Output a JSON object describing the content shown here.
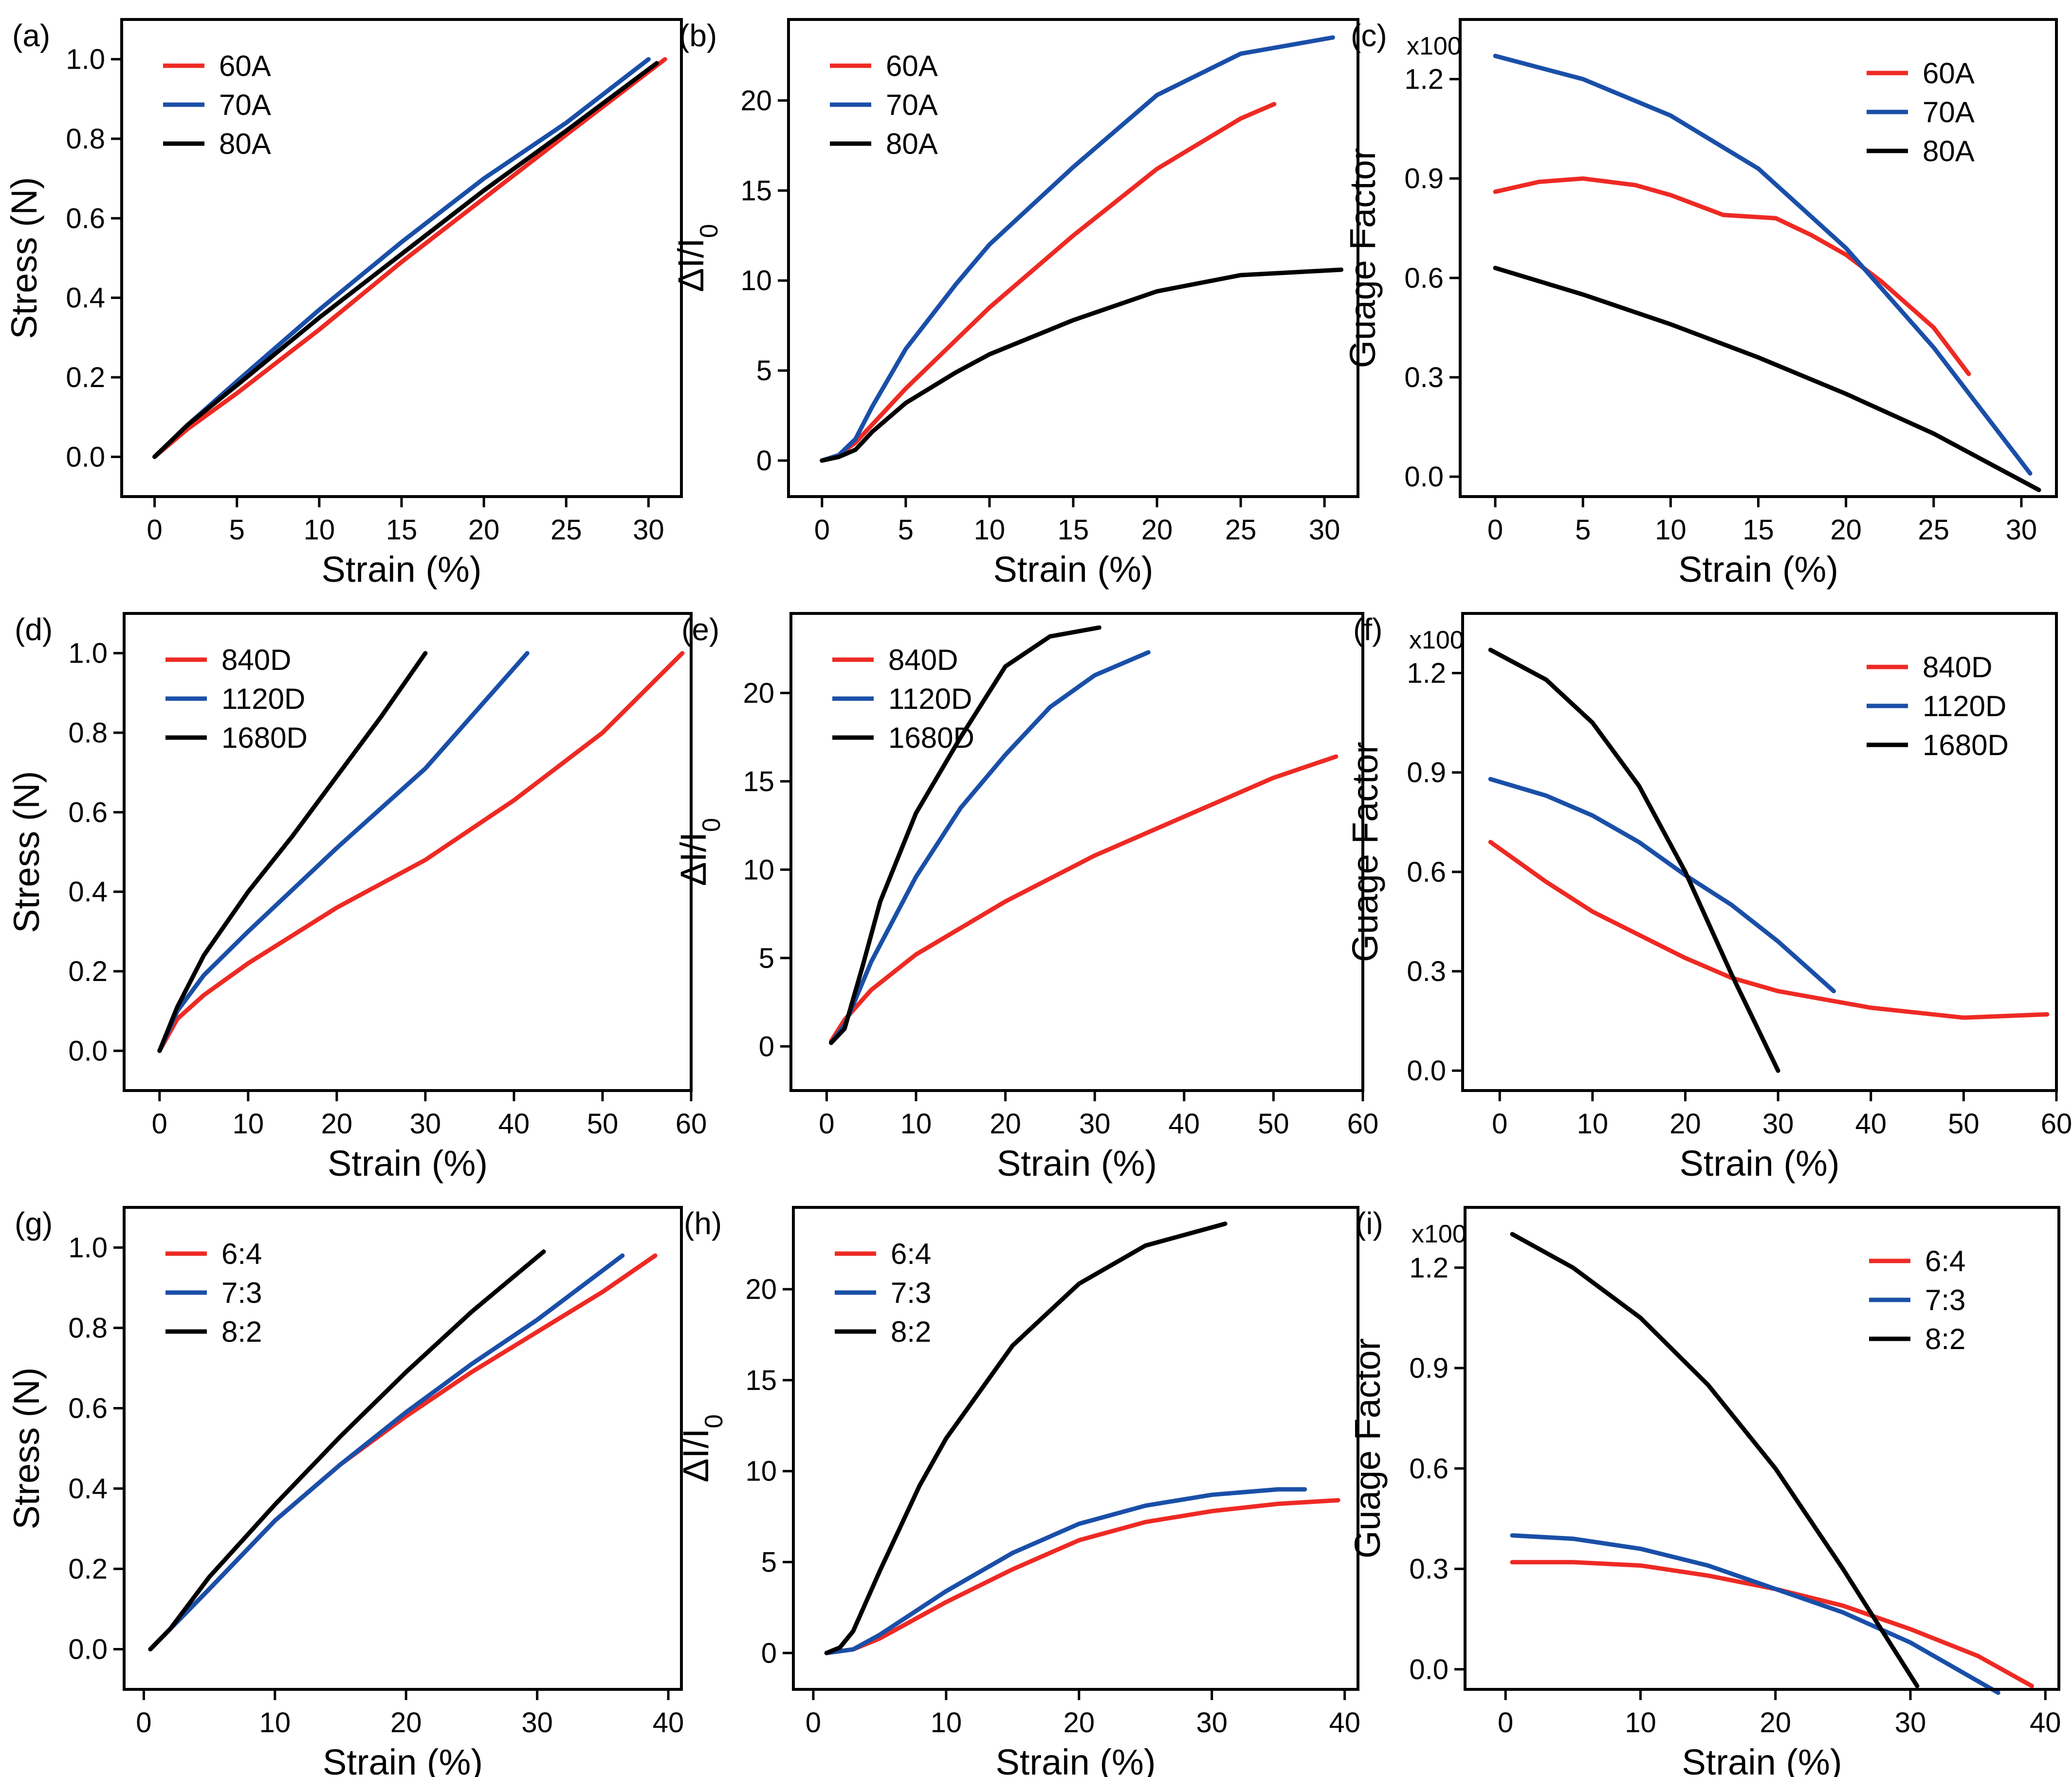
{
  "colors": {
    "red": "#ee2a24",
    "blue": "#1a4fa8",
    "black": "#000000"
  },
  "chart_data": [
    {
      "panel": "(a)",
      "type": "line",
      "xlabel": "Strain (%)",
      "ylabel": "Stress (N)",
      "yscale_label": "",
      "xlim": [
        -2,
        32
      ],
      "ylim": [
        -0.1,
        1.1
      ],
      "xticks": [
        0,
        5,
        10,
        15,
        20,
        25,
        30
      ],
      "xtick_labels": [
        "0",
        "5",
        "10",
        "15",
        "20",
        "25",
        "30"
      ],
      "yticks": [
        0,
        0.2,
        0.4,
        0.6,
        0.8,
        1.0
      ],
      "ytick_labels": [
        "0.0",
        "0.2",
        "0.4",
        "0.6",
        "0.8",
        "1.0"
      ],
      "legend_pos": "top-left",
      "series": [
        {
          "name": "60A",
          "color": "red",
          "x": [
            0,
            2,
            5,
            10,
            15,
            20,
            25,
            31
          ],
          "y": [
            0,
            0.07,
            0.16,
            0.32,
            0.49,
            0.65,
            0.81,
            1.0
          ]
        },
        {
          "name": "70A",
          "color": "blue",
          "x": [
            0,
            2,
            5,
            10,
            15,
            20,
            25,
            30
          ],
          "y": [
            0,
            0.08,
            0.19,
            0.37,
            0.54,
            0.7,
            0.84,
            1.0
          ]
        },
        {
          "name": "80A",
          "color": "black",
          "x": [
            0,
            2,
            5,
            10,
            15,
            20,
            25,
            30.5
          ],
          "y": [
            0,
            0.08,
            0.18,
            0.35,
            0.51,
            0.67,
            0.82,
            0.99
          ]
        }
      ]
    },
    {
      "panel": "(b)",
      "type": "line",
      "xlabel": "Strain (%)",
      "ylabel": "ΔI/I0",
      "yscale_label": "",
      "xlim": [
        -2,
        32
      ],
      "ylim": [
        -2,
        24.5
      ],
      "xticks": [
        0,
        5,
        10,
        15,
        20,
        25,
        30
      ],
      "xtick_labels": [
        "0",
        "5",
        "10",
        "15",
        "20",
        "25",
        "30"
      ],
      "yticks": [
        0,
        5,
        10,
        15,
        20
      ],
      "ytick_labels": [
        "0",
        "5",
        "10",
        "15",
        "20"
      ],
      "legend_pos": "top-left",
      "series": [
        {
          "name": "60A",
          "color": "red",
          "x": [
            0,
            1,
            2,
            3,
            5,
            8,
            10,
            15,
            20,
            25,
            27
          ],
          "y": [
            0,
            0.3,
            1.0,
            2.0,
            4.0,
            6.7,
            8.5,
            12.5,
            16.2,
            19.0,
            19.8
          ]
        },
        {
          "name": "70A",
          "color": "blue",
          "x": [
            0,
            1,
            2,
            3,
            5,
            8,
            10,
            15,
            20,
            25,
            30.5
          ],
          "y": [
            0,
            0.3,
            1.2,
            3.0,
            6.2,
            9.8,
            12.0,
            16.3,
            20.3,
            22.6,
            23.5
          ]
        },
        {
          "name": "80A",
          "color": "black",
          "x": [
            0,
            1,
            2,
            3,
            5,
            8,
            10,
            15,
            20,
            25,
            31
          ],
          "y": [
            0,
            0.2,
            0.6,
            1.6,
            3.2,
            4.9,
            5.9,
            7.8,
            9.4,
            10.3,
            10.6
          ]
        }
      ]
    },
    {
      "panel": "(c)",
      "type": "line",
      "xlabel": "Strain (%)",
      "ylabel": "Guage Factor",
      "yscale_label": "x100",
      "xlim": [
        -2,
        32
      ],
      "ylim": [
        -0.06,
        1.38
      ],
      "xticks": [
        0,
        5,
        10,
        15,
        20,
        25,
        30
      ],
      "xtick_labels": [
        "0",
        "5",
        "10",
        "15",
        "20",
        "25",
        "30"
      ],
      "yticks": [
        0,
        0.3,
        0.6,
        0.9,
        1.2
      ],
      "ytick_labels": [
        "0.0",
        "0.3",
        "0.6",
        "0.9",
        "1.2"
      ],
      "legend_pos": "top-right",
      "series": [
        {
          "name": "60A",
          "color": "red",
          "x": [
            0,
            2.5,
            5,
            8,
            10,
            13,
            16,
            18,
            20,
            22,
            25,
            27
          ],
          "y": [
            0.86,
            0.89,
            0.9,
            0.88,
            0.85,
            0.79,
            0.78,
            0.73,
            0.67,
            0.59,
            0.45,
            0.31
          ]
        },
        {
          "name": "70A",
          "color": "blue",
          "x": [
            0,
            5,
            10,
            15,
            20,
            25,
            30.5
          ],
          "y": [
            1.27,
            1.2,
            1.09,
            0.93,
            0.69,
            0.39,
            0.01
          ]
        },
        {
          "name": "80A",
          "color": "black",
          "x": [
            0,
            5,
            10,
            15,
            20,
            25,
            31
          ],
          "y": [
            0.63,
            0.55,
            0.46,
            0.36,
            0.25,
            0.13,
            -0.04
          ]
        }
      ]
    },
    {
      "panel": "(d)",
      "type": "line",
      "xlabel": "Strain (%)",
      "ylabel": "Stress (N)",
      "yscale_label": "",
      "xlim": [
        -4,
        60
      ],
      "ylim": [
        -0.1,
        1.1
      ],
      "xticks": [
        0,
        10,
        20,
        30,
        40,
        50,
        60
      ],
      "xtick_labels": [
        "0",
        "10",
        "20",
        "30",
        "40",
        "50",
        "60"
      ],
      "yticks": [
        0,
        0.2,
        0.4,
        0.6,
        0.8,
        1.0
      ],
      "ytick_labels": [
        "0.0",
        "0.2",
        "0.4",
        "0.6",
        "0.8",
        "1.0"
      ],
      "legend_pos": "top-left",
      "series": [
        {
          "name": "840D",
          "color": "red",
          "x": [
            0,
            2,
            5,
            10,
            20,
            30,
            40,
            50,
            59
          ],
          "y": [
            0,
            0.08,
            0.14,
            0.22,
            0.36,
            0.48,
            0.63,
            0.8,
            1.0
          ]
        },
        {
          "name": "1120D",
          "color": "blue",
          "x": [
            0,
            2,
            5,
            10,
            20,
            30,
            41.5
          ],
          "y": [
            0,
            0.1,
            0.19,
            0.3,
            0.51,
            0.71,
            1.0
          ]
        },
        {
          "name": "1680D",
          "color": "black",
          "x": [
            0,
            2,
            5,
            10,
            15,
            20,
            25,
            30
          ],
          "y": [
            0,
            0.11,
            0.24,
            0.4,
            0.54,
            0.69,
            0.84,
            1.0
          ]
        }
      ]
    },
    {
      "panel": "(e)",
      "type": "line",
      "xlabel": "Strain (%)",
      "ylabel": "ΔI/I0",
      "yscale_label": "",
      "xlim": [
        -4,
        60
      ],
      "ylim": [
        -2.5,
        24.5
      ],
      "xticks": [
        0,
        10,
        20,
        30,
        40,
        50,
        60
      ],
      "xtick_labels": [
        "0",
        "10",
        "20",
        "30",
        "40",
        "50",
        "60"
      ],
      "yticks": [
        0,
        5,
        10,
        15,
        20
      ],
      "ytick_labels": [
        "0",
        "5",
        "10",
        "15",
        "20"
      ],
      "legend_pos": "top-left",
      "series": [
        {
          "name": "840D",
          "color": "red",
          "x": [
            0.5,
            2,
            5,
            10,
            20,
            30,
            40,
            50,
            57
          ],
          "y": [
            0.3,
            1.5,
            3.2,
            5.2,
            8.2,
            10.8,
            13.0,
            15.2,
            16.4
          ]
        },
        {
          "name": "1120D",
          "color": "blue",
          "x": [
            0.5,
            2,
            5,
            10,
            15,
            20,
            25,
            30,
            36
          ],
          "y": [
            0.2,
            1.2,
            4.8,
            9.6,
            13.5,
            16.5,
            19.2,
            21.0,
            22.3
          ]
        },
        {
          "name": "1680D",
          "color": "black",
          "x": [
            0.5,
            2,
            4,
            6,
            10,
            15,
            20,
            25,
            30.5
          ],
          "y": [
            0.2,
            1.0,
            4.5,
            8.2,
            13.2,
            17.5,
            21.5,
            23.2,
            23.7
          ]
        }
      ]
    },
    {
      "panel": "(f)",
      "type": "line",
      "xlabel": "Strain (%)",
      "ylabel": "Guage Factor",
      "yscale_label": "x100",
      "xlim": [
        -4,
        60
      ],
      "ylim": [
        -0.06,
        1.38
      ],
      "xticks": [
        0,
        10,
        20,
        30,
        40,
        50,
        60
      ],
      "xtick_labels": [
        "0",
        "10",
        "20",
        "30",
        "40",
        "50",
        "60"
      ],
      "yticks": [
        0,
        0.3,
        0.6,
        0.9,
        1.2
      ],
      "ytick_labels": [
        "0.0",
        "0.3",
        "0.6",
        "0.9",
        "1.2"
      ],
      "legend_pos": "top-right",
      "series": [
        {
          "name": "840D",
          "color": "red",
          "x": [
            -1,
            5,
            10,
            20,
            25,
            30,
            40,
            50,
            59
          ],
          "y": [
            0.69,
            0.57,
            0.48,
            0.34,
            0.28,
            0.24,
            0.19,
            0.16,
            0.17
          ]
        },
        {
          "name": "1120D",
          "color": "blue",
          "x": [
            -1,
            5,
            10,
            15,
            20,
            25,
            30,
            36
          ],
          "y": [
            0.88,
            0.83,
            0.77,
            0.69,
            0.59,
            0.5,
            0.39,
            0.24
          ]
        },
        {
          "name": "1680D",
          "color": "black",
          "x": [
            -1,
            5,
            10,
            15,
            20,
            25,
            30
          ],
          "y": [
            1.27,
            1.18,
            1.05,
            0.86,
            0.6,
            0.29,
            0.0
          ]
        }
      ]
    },
    {
      "panel": "(g)",
      "type": "line",
      "xlabel": "Strain (%)",
      "ylabel": "Stress (N)",
      "yscale_label": "",
      "xlim": [
        -1.5,
        41
      ],
      "ylim": [
        -0.1,
        1.1
      ],
      "xticks": [
        0,
        10,
        20,
        30,
        40
      ],
      "xtick_labels": [
        "0",
        "10",
        "20",
        "30",
        "40"
      ],
      "yticks": [
        0,
        0.2,
        0.4,
        0.6,
        0.8,
        1.0
      ],
      "ytick_labels": [
        "0.0",
        "0.2",
        "0.4",
        "0.6",
        "0.8",
        "1.0"
      ],
      "legend_pos": "top-left",
      "series": [
        {
          "name": "6:4",
          "color": "red",
          "x": [
            0.5,
            2,
            5,
            10,
            15,
            20,
            25,
            30,
            35,
            39
          ],
          "y": [
            0,
            0.05,
            0.15,
            0.32,
            0.46,
            0.58,
            0.69,
            0.79,
            0.89,
            0.98
          ]
        },
        {
          "name": "7:3",
          "color": "blue",
          "x": [
            0.5,
            2,
            5,
            10,
            15,
            20,
            25,
            30,
            36.5
          ],
          "y": [
            0,
            0.05,
            0.15,
            0.32,
            0.46,
            0.59,
            0.71,
            0.82,
            0.98
          ]
        },
        {
          "name": "8:2",
          "color": "black",
          "x": [
            0.5,
            2,
            5,
            10,
            15,
            20,
            25,
            30.5
          ],
          "y": [
            0,
            0.05,
            0.18,
            0.36,
            0.53,
            0.69,
            0.84,
            0.99
          ]
        }
      ]
    },
    {
      "panel": "(h)",
      "type": "line",
      "xlabel": "Strain (%)",
      "ylabel": "ΔI/I0",
      "yscale_label": "",
      "xlim": [
        -1.5,
        41
      ],
      "ylim": [
        -2,
        24.5
      ],
      "xticks": [
        0,
        10,
        20,
        30,
        40
      ],
      "xtick_labels": [
        "0",
        "10",
        "20",
        "30",
        "40"
      ],
      "yticks": [
        0,
        5,
        10,
        15,
        20
      ],
      "ytick_labels": [
        "0",
        "5",
        "10",
        "15",
        "20"
      ],
      "legend_pos": "top-left",
      "series": [
        {
          "name": "6:4",
          "color": "red",
          "x": [
            1,
            3,
            5,
            10,
            15,
            20,
            25,
            30,
            35,
            39.5
          ],
          "y": [
            0,
            0.2,
            0.8,
            2.8,
            4.6,
            6.2,
            7.2,
            7.8,
            8.2,
            8.4
          ]
        },
        {
          "name": "7:3",
          "color": "blue",
          "x": [
            1,
            3,
            5,
            10,
            15,
            20,
            25,
            30,
            35,
            37
          ],
          "y": [
            0,
            0.2,
            1.0,
            3.4,
            5.5,
            7.1,
            8.1,
            8.7,
            9.0,
            9.0
          ]
        },
        {
          "name": "8:2",
          "color": "black",
          "x": [
            1,
            2,
            3,
            5,
            8,
            10,
            15,
            20,
            25,
            31
          ],
          "y": [
            0,
            0.3,
            1.2,
            4.5,
            9.2,
            11.8,
            16.9,
            20.3,
            22.4,
            23.6
          ]
        }
      ]
    },
    {
      "panel": "(i)",
      "type": "line",
      "xlabel": "Strain (%)",
      "ylabel": "Guage Factor",
      "yscale_label": "x100",
      "xlim": [
        -3,
        41
      ],
      "ylim": [
        -0.06,
        1.38
      ],
      "xticks": [
        0,
        10,
        20,
        30,
        40
      ],
      "xtick_labels": [
        "0",
        "10",
        "20",
        "30",
        "40"
      ],
      "yticks": [
        0,
        0.3,
        0.6,
        0.9,
        1.2
      ],
      "ytick_labels": [
        "0.0",
        "0.3",
        "0.6",
        "0.9",
        "1.2"
      ],
      "legend_pos": "top-right",
      "series": [
        {
          "name": "6:4",
          "color": "red",
          "x": [
            0.5,
            5,
            10,
            15,
            20,
            25,
            30,
            35,
            39
          ],
          "y": [
            0.32,
            0.32,
            0.31,
            0.28,
            0.24,
            0.19,
            0.12,
            0.04,
            -0.05
          ]
        },
        {
          "name": "7:3",
          "color": "blue",
          "x": [
            0.5,
            5,
            10,
            15,
            20,
            25,
            30,
            36.5
          ],
          "y": [
            0.4,
            0.39,
            0.36,
            0.31,
            0.24,
            0.17,
            0.08,
            -0.07
          ]
        },
        {
          "name": "8:2",
          "color": "black",
          "x": [
            0.5,
            5,
            10,
            15,
            20,
            25,
            30.5
          ],
          "y": [
            1.3,
            1.2,
            1.05,
            0.85,
            0.6,
            0.3,
            -0.05
          ]
        }
      ]
    }
  ]
}
